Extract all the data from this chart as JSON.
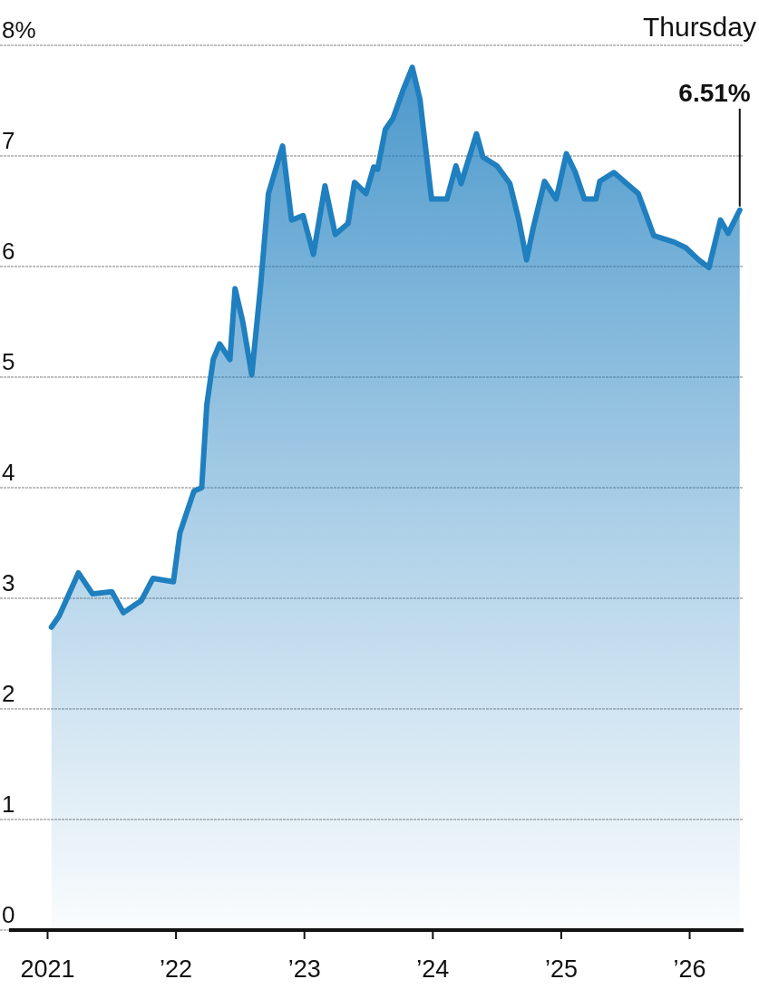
{
  "chart_data": {
    "type": "area",
    "x": [
      2021.03,
      2021.09,
      2021.24,
      2021.35,
      2021.5,
      2021.59,
      2021.73,
      2021.82,
      2021.98,
      2022.03,
      2022.14,
      2022.2,
      2022.24,
      2022.29,
      2022.34,
      2022.42,
      2022.46,
      2022.52,
      2022.59,
      2022.66,
      2022.72,
      2022.83,
      2022.9,
      2022.99,
      2023.07,
      2023.16,
      2023.24,
      2023.34,
      2023.39,
      2023.48,
      2023.54,
      2023.57,
      2023.63,
      2023.69,
      2023.77,
      2023.84,
      2023.9,
      2023.99,
      2024.11,
      2024.18,
      2024.22,
      2024.34,
      2024.39,
      2024.5,
      2024.6,
      2024.67,
      2024.73,
      2024.78,
      2024.87,
      2024.96,
      2025.04,
      2025.11,
      2025.18,
      2025.27,
      2025.3,
      2025.41,
      2025.51,
      2025.6,
      2025.67,
      2025.72,
      2025.88,
      2025.97,
      2026.07,
      2026.15,
      2026.24,
      2026.3,
      2026.39
    ],
    "series": [
      {
        "color": "#1f7fbf",
        "values": [
          2.74,
          2.84,
          3.23,
          3.04,
          3.06,
          2.87,
          2.98,
          3.18,
          3.15,
          3.59,
          3.97,
          4.0,
          4.75,
          5.16,
          5.3,
          5.16,
          5.8,
          5.5,
          5.02,
          5.84,
          6.66,
          7.09,
          6.42,
          6.46,
          6.11,
          6.73,
          6.29,
          6.39,
          6.76,
          6.66,
          6.9,
          6.88,
          7.24,
          7.34,
          7.6,
          7.8,
          7.51,
          6.61,
          6.61,
          6.91,
          6.75,
          7.2,
          6.99,
          6.91,
          6.75,
          6.42,
          6.06,
          6.34,
          6.77,
          6.61,
          7.02,
          6.85,
          6.61,
          6.61,
          6.77,
          6.85,
          6.75,
          6.66,
          6.44,
          6.28,
          6.22,
          6.17,
          6.06,
          5.99,
          6.42,
          6.3,
          6.51
        ]
      }
    ],
    "xlim": [
      2020.7,
      2026.42
    ],
    "xticks": [
      {
        "value": 2021,
        "label": "2021"
      },
      {
        "value": 2022,
        "label": "’22"
      },
      {
        "value": 2023,
        "label": "’23"
      },
      {
        "value": 2024,
        "label": "’24"
      },
      {
        "value": 2025,
        "label": "’25"
      },
      {
        "value": 2026,
        "label": "’26"
      }
    ],
    "ylim": [
      0,
      8
    ],
    "yticks": [
      0,
      1,
      2,
      3,
      4,
      5,
      6,
      7,
      {
        "value": 8,
        "label": "8%"
      }
    ],
    "grid": "y",
    "annotations": [
      "Thursday",
      {
        "text": "6.51%",
        "x": 2026.39,
        "y": 6.51
      }
    ]
  }
}
